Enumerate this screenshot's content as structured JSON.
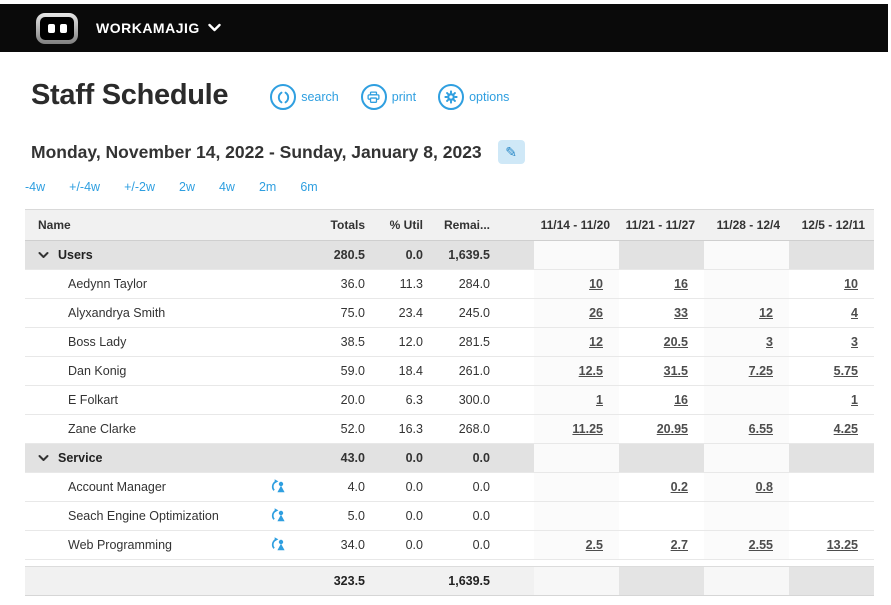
{
  "topbar": {
    "brand": "WORKAMAJIG"
  },
  "header": {
    "title": "Staff Schedule",
    "actions": {
      "search": "search",
      "print": "print",
      "options": "options"
    }
  },
  "date_range": "Monday, November 14, 2022 - Sunday, January 8, 2023",
  "range_links": [
    "-4w",
    "+/-4w",
    "+/-2w",
    "2w",
    "4w",
    "2m",
    "6m"
  ],
  "table": {
    "columns": {
      "name": "Name",
      "totals": "Totals",
      "util": "% Util",
      "remaining": "Remai...",
      "weeks": [
        "11/14 - 11/20",
        "11/21 - 11/27",
        "11/28 - 12/4",
        "12/5 - 12/11"
      ]
    },
    "rows": [
      {
        "type": "group",
        "name": "Users",
        "icon": false,
        "totals": "280.5",
        "util": "0.0",
        "remaining": "1,639.5",
        "weeks": [
          "",
          "",
          "",
          ""
        ]
      },
      {
        "type": "item",
        "name": "Aedynn Taylor",
        "icon": false,
        "totals": "36.0",
        "util": "11.3",
        "remaining": "284.0",
        "weeks": [
          "10",
          "16",
          "",
          "10"
        ]
      },
      {
        "type": "item",
        "name": "Alyxandrya Smith",
        "icon": false,
        "totals": "75.0",
        "util": "23.4",
        "remaining": "245.0",
        "weeks": [
          "26",
          "33",
          "12",
          "4"
        ]
      },
      {
        "type": "item",
        "name": "Boss Lady",
        "icon": false,
        "totals": "38.5",
        "util": "12.0",
        "remaining": "281.5",
        "weeks": [
          "12",
          "20.5",
          "3",
          "3"
        ]
      },
      {
        "type": "item",
        "name": "Dan Konig",
        "icon": false,
        "totals": "59.0",
        "util": "18.4",
        "remaining": "261.0",
        "weeks": [
          "12.5",
          "31.5",
          "7.25",
          "5.75"
        ]
      },
      {
        "type": "item",
        "name": "E Folkart",
        "icon": false,
        "totals": "20.0",
        "util": "6.3",
        "remaining": "300.0",
        "weeks": [
          "1",
          "16",
          "",
          "1"
        ]
      },
      {
        "type": "item",
        "name": "Zane Clarke",
        "icon": false,
        "totals": "52.0",
        "util": "16.3",
        "remaining": "268.0",
        "weeks": [
          "11.25",
          "20.95",
          "6.55",
          "4.25"
        ]
      },
      {
        "type": "group",
        "name": "Service",
        "icon": false,
        "totals": "43.0",
        "util": "0.0",
        "remaining": "0.0",
        "weeks": [
          "",
          "",
          "",
          ""
        ]
      },
      {
        "type": "item",
        "name": "Account Manager",
        "icon": true,
        "totals": "4.0",
        "util": "0.0",
        "remaining": "0.0",
        "weeks": [
          "",
          "0.2",
          "0.8",
          ""
        ]
      },
      {
        "type": "item",
        "name": "Seach Engine Optimization",
        "icon": true,
        "totals": "5.0",
        "util": "0.0",
        "remaining": "0.0",
        "weeks": [
          "",
          "",
          "",
          ""
        ]
      },
      {
        "type": "item",
        "name": "Web Programming",
        "icon": true,
        "totals": "34.0",
        "util": "0.0",
        "remaining": "0.0",
        "weeks": [
          "2.5",
          "2.7",
          "2.55",
          "13.25"
        ]
      }
    ],
    "footer": {
      "totals": "323.5",
      "util": "",
      "remaining": "1,639.5"
    }
  },
  "colors": {
    "accent_blue": "#2f9fe0",
    "topbar_black": "#0a0a0a",
    "group_gray": "#e2e2e2",
    "header_gray": "#f1f1f1",
    "edit_button_bg": "#cfe8f7"
  }
}
